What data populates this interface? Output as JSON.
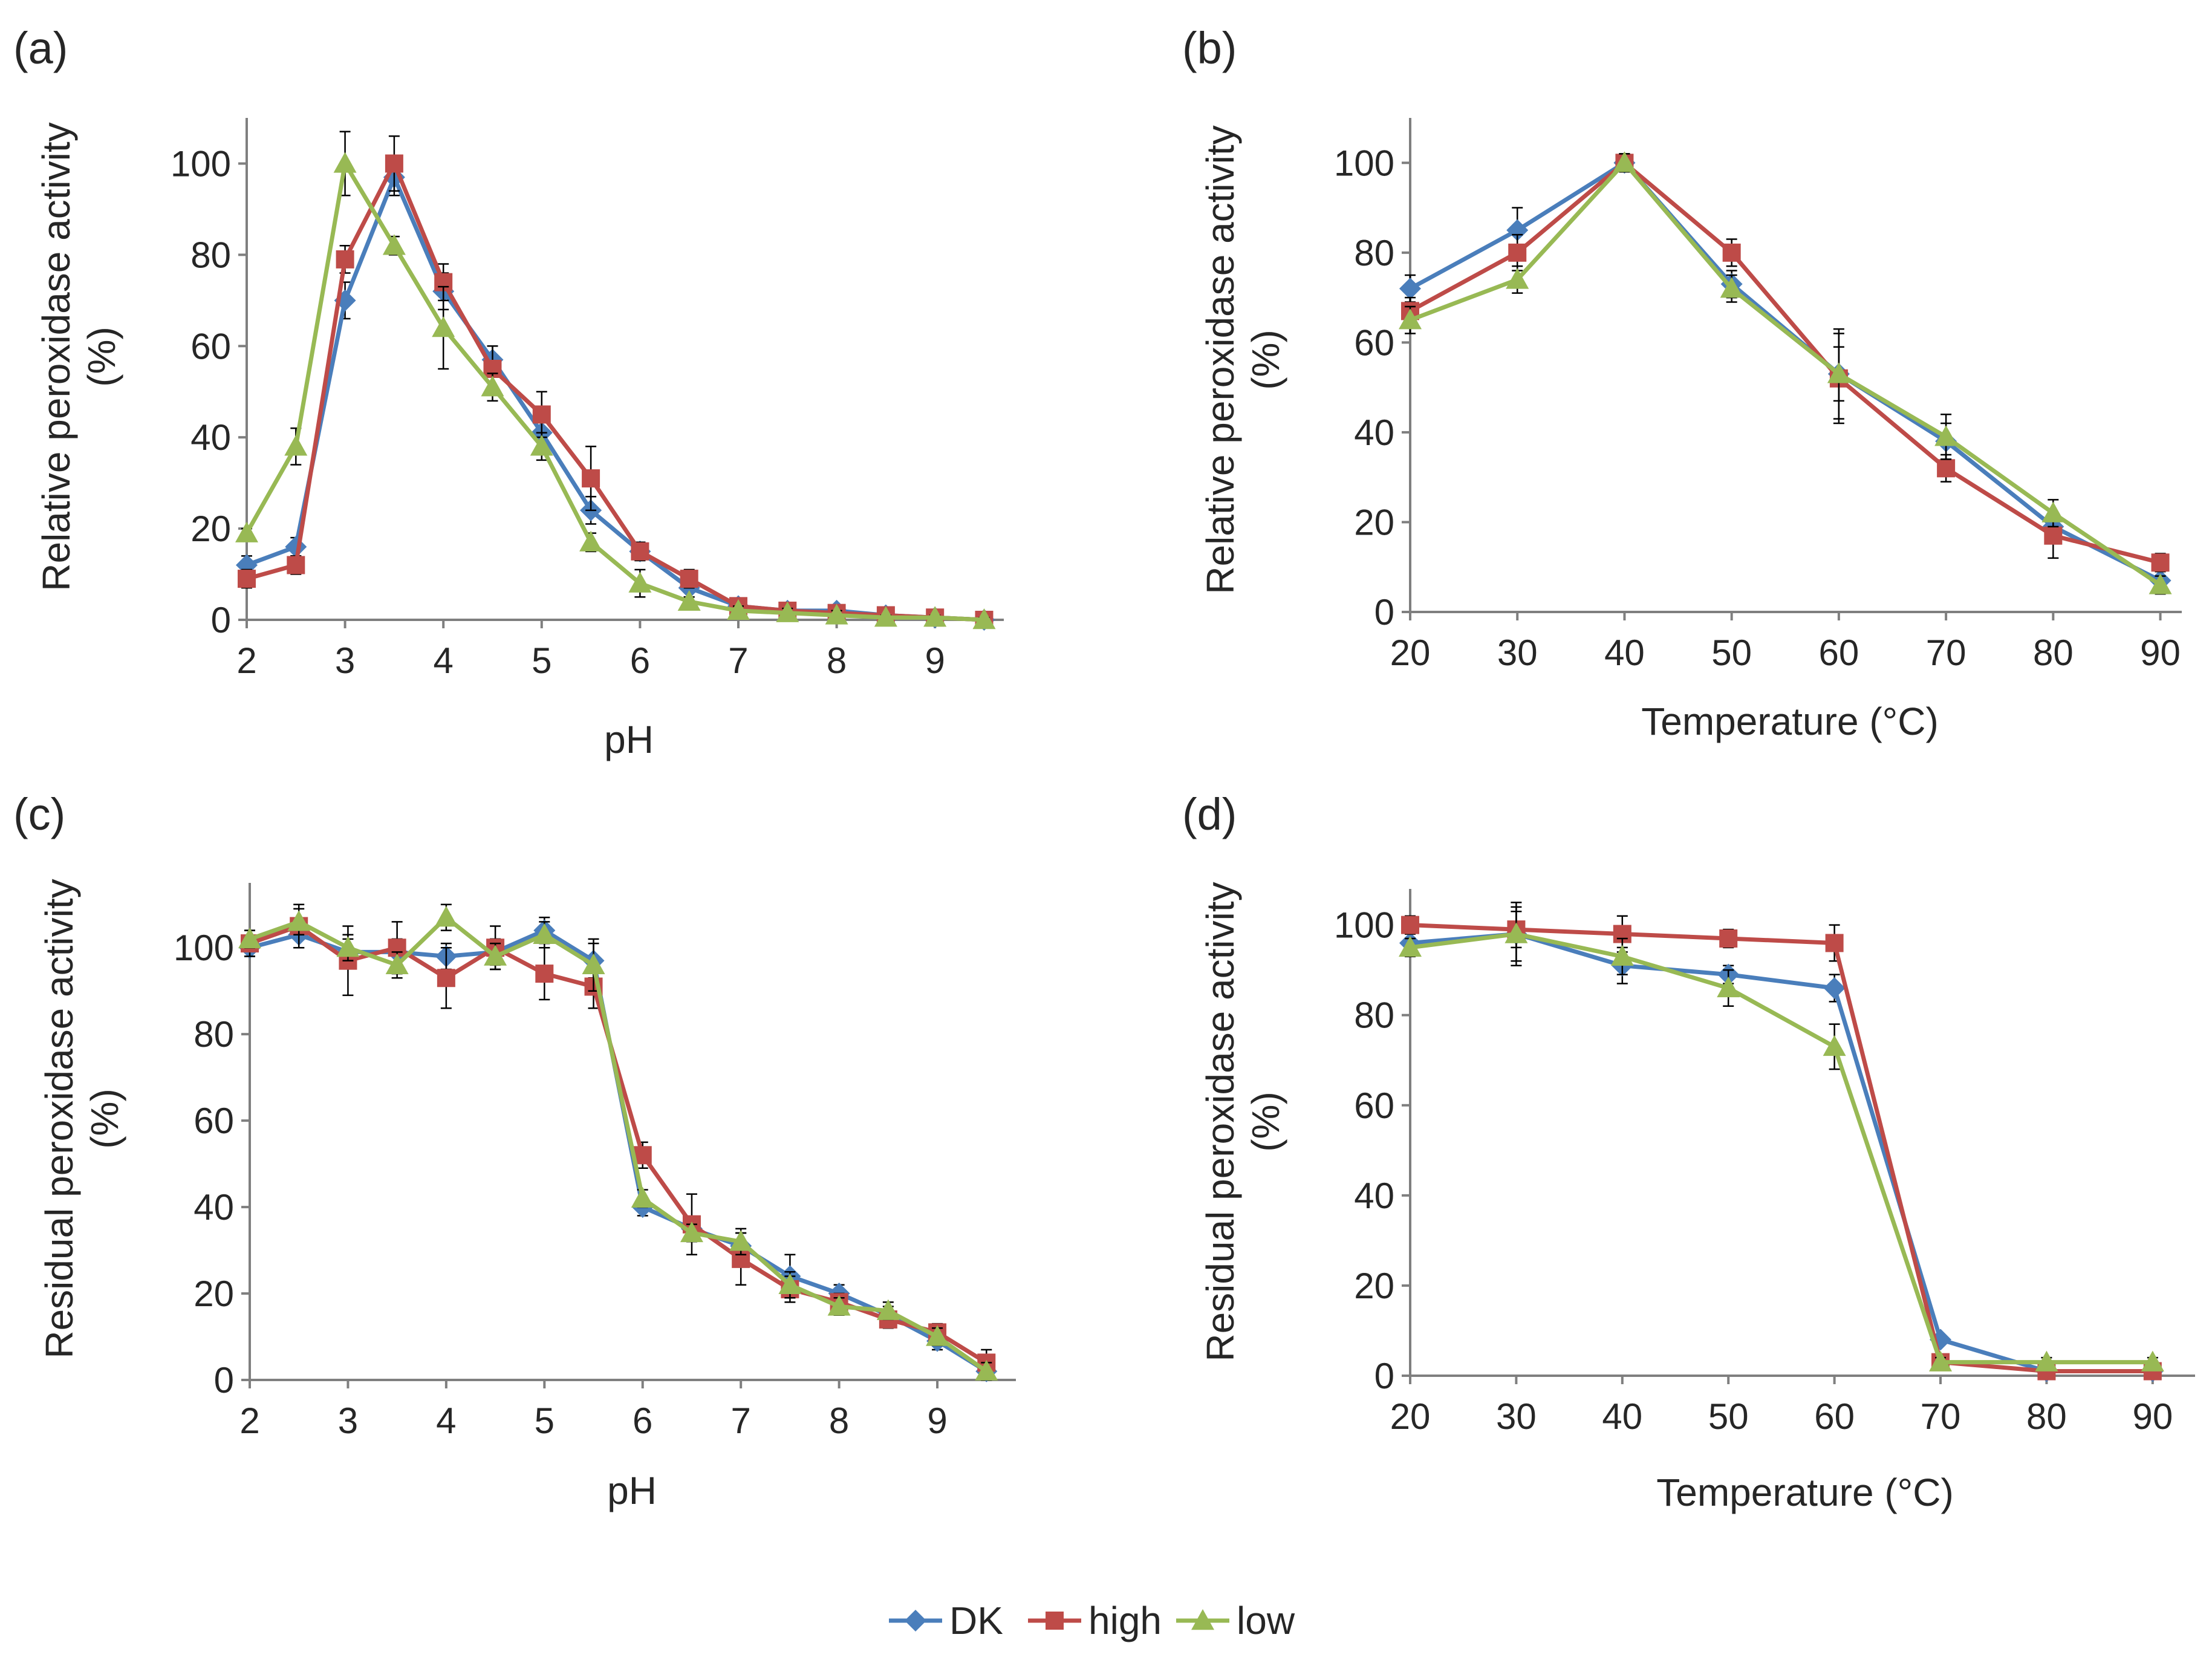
{
  "series_style": [
    {
      "key": "DK",
      "color": "#4a7ebb",
      "marker": "diamond"
    },
    {
      "key": "high",
      "color": "#be4b48",
      "marker": "square"
    },
    {
      "key": "low",
      "color": "#98b954",
      "marker": "triangle"
    }
  ],
  "legend": {
    "entries": [
      "DK",
      "high",
      "low"
    ],
    "placement": "bottom-center"
  },
  "chart_data": [
    {
      "type": "line",
      "panel_label": "(a)",
      "xlabel": "pH",
      "ylabel_lines": [
        "Relative peroxidase activity",
        "(%)"
      ],
      "xlim": [
        2,
        9.7
      ],
      "ylim": [
        0,
        110
      ],
      "xticks": [
        "2",
        "3",
        "4",
        "5",
        "6",
        "7",
        "8",
        "9"
      ],
      "xtick_values": [
        2,
        3,
        4,
        5,
        6,
        7,
        8,
        9
      ],
      "yticks": [
        "0",
        "20",
        "40",
        "60",
        "80",
        "100"
      ],
      "ytick_values": [
        0,
        20,
        40,
        60,
        80,
        100
      ],
      "x": [
        2,
        2.5,
        3,
        3.5,
        4,
        4.5,
        5,
        5.5,
        6,
        6.5,
        7,
        7.5,
        8,
        8.5,
        9,
        9.5
      ],
      "series": [
        {
          "name": "DK",
          "values": [
            12,
            16,
            70,
            97,
            72,
            57,
            41,
            24,
            15,
            7,
            3,
            2,
            2,
            1,
            0.5,
            0
          ],
          "errors": [
            2,
            2,
            4,
            4,
            4,
            3,
            3,
            3,
            2,
            2,
            1,
            1,
            1,
            1,
            0.5,
            0.5
          ]
        },
        {
          "name": "high",
          "values": [
            9,
            12,
            79,
            100,
            74,
            55,
            45,
            31,
            15,
            9,
            3,
            2,
            1.5,
            1,
            0.5,
            0
          ],
          "errors": [
            2,
            2,
            3,
            6,
            4,
            5,
            5,
            7,
            2,
            2,
            1,
            1,
            1,
            1,
            0.5,
            0.5
          ]
        },
        {
          "name": "low",
          "values": [
            19,
            38,
            100,
            82,
            64,
            51,
            38,
            17,
            8,
            4,
            2,
            1.5,
            1,
            0.5,
            0.5,
            0
          ],
          "errors": [
            1,
            4,
            7,
            2,
            9,
            3,
            3,
            2,
            3,
            1,
            1,
            1,
            1,
            0.5,
            0.5,
            0.5
          ]
        }
      ]
    },
    {
      "type": "line",
      "panel_label": "(b)",
      "xlabel": "Temperature (°C)",
      "ylabel_lines": [
        "Relative peroxidase activity",
        "(%)"
      ],
      "xlim": [
        20,
        92
      ],
      "ylim": [
        0,
        110
      ],
      "xticks": [
        "20",
        "30",
        "40",
        "50",
        "60",
        "70",
        "80",
        "90"
      ],
      "xtick_values": [
        20,
        30,
        40,
        50,
        60,
        70,
        80,
        90
      ],
      "yticks": [
        "0",
        "20",
        "40",
        "60",
        "80",
        "100"
      ],
      "ytick_values": [
        0,
        20,
        40,
        60,
        80,
        100
      ],
      "x": [
        20,
        30,
        40,
        50,
        60,
        70,
        80,
        90
      ],
      "series": [
        {
          "name": "DK",
          "values": [
            72,
            85,
            100,
            73,
            53,
            38,
            19,
            7
          ],
          "errors": [
            3,
            5,
            2,
            3,
            10,
            4,
            3,
            2
          ]
        },
        {
          "name": "high",
          "values": [
            67,
            80,
            100,
            80,
            52,
            32,
            17,
            11
          ],
          "errors": [
            3,
            4,
            2,
            3,
            10,
            3,
            5,
            2
          ]
        },
        {
          "name": "low",
          "values": [
            65,
            74,
            100,
            72,
            53,
            39,
            22,
            6
          ],
          "errors": [
            3,
            3,
            2,
            3,
            6,
            5,
            3,
            2
          ]
        }
      ]
    },
    {
      "type": "line",
      "panel_label": "(c)",
      "xlabel": "pH",
      "ylabel_lines": [
        "Residual peroxidase activity",
        "(%)"
      ],
      "xlim": [
        2,
        9.8
      ],
      "ylim": [
        0,
        115
      ],
      "xticks": [
        "2",
        "3",
        "4",
        "5",
        "6",
        "7",
        "8",
        "9"
      ],
      "xtick_values": [
        2,
        3,
        4,
        5,
        6,
        7,
        8,
        9
      ],
      "yticks": [
        "0",
        "20",
        "40",
        "60",
        "80",
        "100"
      ],
      "ytick_values": [
        0,
        20,
        40,
        60,
        80,
        100
      ],
      "x": [
        2,
        2.5,
        3,
        3.5,
        4,
        4.5,
        5,
        5.5,
        6,
        6.5,
        7,
        7.5,
        8,
        8.5,
        9,
        9.5
      ],
      "series": [
        {
          "name": "DK",
          "values": [
            100,
            103,
            99,
            99,
            98,
            99,
            104,
            97,
            40,
            35,
            31,
            24,
            20,
            15,
            9,
            2
          ],
          "errors": [
            2,
            3,
            3,
            3,
            3,
            3,
            3,
            4,
            2,
            2,
            3,
            5,
            2,
            2,
            2,
            2
          ]
        },
        {
          "name": "high",
          "values": [
            101,
            105,
            97,
            100,
            93,
            100,
            94,
            91,
            52,
            36,
            28,
            21,
            18,
            14,
            11,
            4
          ],
          "errors": [
            3,
            5,
            8,
            6,
            7,
            5,
            6,
            5,
            3,
            7,
            6,
            3,
            2,
            2,
            2,
            3
          ]
        },
        {
          "name": "low",
          "values": [
            102,
            106,
            100,
            96,
            107,
            98,
            103,
            96,
            42,
            34,
            32,
            22,
            17,
            16,
            10,
            2
          ],
          "errors": [
            2,
            3,
            3,
            3,
            3,
            3,
            3,
            6,
            2,
            2,
            3,
            3,
            2,
            2,
            2,
            2
          ]
        }
      ]
    },
    {
      "type": "line",
      "panel_label": "(d)",
      "xlabel": "Temperature (°C)",
      "ylabel_lines": [
        "Residual peroxidase activity",
        "(%)"
      ],
      "xlim": [
        20,
        94
      ],
      "ylim": [
        0,
        108
      ],
      "xticks": [
        "20",
        "30",
        "40",
        "50",
        "60",
        "70",
        "80",
        "90"
      ],
      "xtick_values": [
        20,
        30,
        40,
        50,
        60,
        70,
        80,
        90
      ],
      "yticks": [
        "0",
        "20",
        "40",
        "60",
        "80",
        "100"
      ],
      "ytick_values": [
        0,
        20,
        40,
        60,
        80,
        100
      ],
      "x": [
        20,
        30,
        40,
        50,
        60,
        70,
        80,
        90
      ],
      "series": [
        {
          "name": "DK",
          "values": [
            96,
            98,
            91,
            89,
            86,
            8,
            1,
            1
          ],
          "errors": [
            2,
            6,
            4,
            2,
            3,
            1,
            1,
            1
          ]
        },
        {
          "name": "high",
          "values": [
            100,
            99,
            98,
            97,
            96,
            3,
            1,
            1
          ],
          "errors": [
            2,
            4,
            4,
            2,
            4,
            1,
            1,
            1
          ]
        },
        {
          "name": "low",
          "values": [
            95,
            98,
            93,
            86,
            73,
            3,
            3,
            3
          ],
          "errors": [
            2,
            7,
            4,
            4,
            5,
            1,
            1,
            1
          ]
        }
      ]
    }
  ]
}
